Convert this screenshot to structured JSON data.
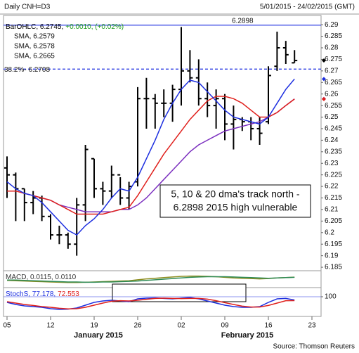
{
  "header": {
    "left": "Daily CNH=D3",
    "right": "5/01/2015 - 24/02/2015 (GMT)"
  },
  "source": "Source: Thomson Reuters",
  "months": [
    "January 2015",
    "February 2015"
  ],
  "chart_data": [
    {
      "type": "ohlc",
      "categories": [
        "05",
        null,
        null,
        null,
        null,
        "12",
        null,
        null,
        null,
        null,
        "19",
        null,
        null,
        null,
        null,
        "26",
        null,
        null,
        null,
        null,
        "02",
        null,
        null,
        null,
        null,
        "09",
        null,
        null,
        null,
        null,
        "16",
        null,
        null,
        null,
        null,
        "23"
      ],
      "open": [
        6.228,
        6.225,
        6.219,
        6.213,
        6.215,
        6.207,
        6.199,
        6.199,
        6.195,
        6.212,
        6.232,
        6.219,
        6.218,
        6.225,
        6.215,
        6.222,
        6.258,
        6.258,
        6.256,
        6.256,
        6.262,
        6.27,
        6.267,
        6.258,
        6.255,
        6.258,
        6.247,
        6.249,
        6.248,
        6.245,
        6.248,
        6.272,
        6.28,
        6.2735,
        null,
        null
      ],
      "high": [
        6.233,
        6.226,
        6.219,
        6.218,
        6.216,
        6.208,
        6.203,
        6.2,
        6.215,
        6.238,
        6.232,
        6.222,
        6.229,
        6.224,
        6.222,
        6.263,
        6.267,
        6.26,
        6.262,
        6.264,
        6.289,
        6.279,
        6.275,
        6.265,
        6.262,
        6.26,
        6.255,
        6.25,
        6.25,
        6.25,
        6.272,
        6.287,
        6.283,
        6.279,
        null,
        null
      ],
      "low": [
        6.215,
        6.205,
        6.205,
        6.208,
        6.205,
        6.197,
        6.195,
        6.193,
        6.19,
        6.205,
        6.215,
        6.212,
        6.215,
        6.212,
        6.21,
        6.22,
        6.245,
        6.245,
        6.25,
        6.248,
        6.255,
        6.265,
        6.255,
        6.25,
        6.245,
        6.24,
        6.236,
        6.244,
        6.24,
        6.238,
        6.247,
        6.27,
        6.273,
        6.2735,
        null,
        null
      ],
      "close": [
        6.225,
        6.219,
        6.213,
        6.215,
        6.207,
        6.199,
        6.199,
        6.195,
        6.212,
        6.236,
        6.219,
        6.218,
        6.225,
        6.215,
        6.22,
        6.258,
        6.258,
        6.256,
        6.256,
        6.262,
        6.27,
        6.267,
        6.258,
        6.255,
        6.258,
        6.247,
        6.249,
        6.248,
        6.245,
        6.243,
        6.268,
        6.28,
        6.277,
        6.2745,
        null,
        null
      ],
      "bar_color": "#000000",
      "legend": [
        [
          {
            "text": "BarOHLC, 6.2745,",
            "color": "#000000"
          },
          {
            "text": "+0.0010, (+0.02%)",
            "color": "#1a9a1a"
          }
        ]
      ],
      "series": [
        {
          "name": "SMA, 6.2579",
          "color": "#7b2fbf",
          "values": [
            null,
            null,
            null,
            6.216,
            6.215,
            6.214,
            6.212,
            6.211,
            6.21,
            6.209,
            6.209,
            6.209,
            6.209,
            6.21,
            6.21,
            6.212,
            6.215,
            6.219,
            6.223,
            6.227,
            6.231,
            6.235,
            6.238,
            6.24,
            6.242,
            6.244,
            6.245,
            6.246,
            6.247,
            6.248,
            6.25,
            6.252,
            6.255,
            6.2579,
            null,
            null
          ]
        },
        {
          "name": "SMA, 6.2578",
          "color": "#e0201c",
          "values": [
            6.218,
            6.218,
            6.217,
            6.216,
            6.215,
            6.214,
            6.212,
            6.21,
            6.208,
            6.208,
            6.208,
            6.208,
            6.209,
            6.21,
            6.211,
            6.216,
            6.222,
            6.228,
            6.234,
            6.239,
            6.244,
            6.249,
            6.253,
            6.257,
            6.259,
            6.259,
            6.258,
            6.256,
            6.253,
            6.25,
            6.25,
            6.252,
            6.255,
            6.2578,
            null,
            null
          ]
        },
        {
          "name": "SMA, 6.2665",
          "color": "#1d2fe0",
          "values": [
            6.222,
            6.219,
            6.217,
            6.216,
            6.213,
            6.209,
            6.205,
            6.201,
            6.199,
            6.203,
            6.206,
            6.21,
            6.215,
            6.219,
            6.218,
            6.224,
            6.232,
            6.24,
            6.249,
            6.256,
            6.262,
            6.266,
            6.265,
            6.261,
            6.257,
            6.253,
            6.25,
            6.249,
            6.248,
            6.247,
            6.25,
            6.256,
            6.262,
            6.2665,
            null,
            null
          ]
        }
      ],
      "hlines": [
        {
          "value": 6.2898,
          "label": "6.2898",
          "color": "#1d2fe0",
          "dashed": false
        },
        {
          "value": 6.2708,
          "label": "38.2%- 6.2708",
          "color": "#1d2fe0",
          "dashed": true
        }
      ],
      "annotations": [
        [
          "5, 10 & 20 dma's track north -",
          "6.2898 2015 high vulnerable"
        ]
      ],
      "ylim": [
        6.1835,
        6.294
      ],
      "yticks": [
        6.29,
        6.285,
        6.28,
        6.275,
        6.27,
        6.265,
        6.26,
        6.255,
        6.25,
        6.245,
        6.24,
        6.235,
        6.23,
        6.225,
        6.22,
        6.215,
        6.21,
        6.205,
        6.2,
        6.195,
        6.19,
        6.185
      ]
    },
    {
      "type": "line",
      "legend": [
        [
          {
            "text": "MACD, 0.0115, 0.0110",
            "color": "#333333"
          }
        ]
      ],
      "series": [
        {
          "color": "#8c8c1e",
          "values": [
            0.001,
            0.0,
            -0.001,
            -0.002,
            -0.003,
            -0.004,
            -0.005,
            -0.006,
            -0.006,
            -0.005,
            -0.004,
            -0.003,
            -0.002,
            -0.001,
            0.0,
            0.003,
            0.006,
            0.008,
            0.01,
            0.012,
            0.014,
            0.015,
            0.015,
            0.014,
            0.013,
            0.011,
            0.009,
            0.008,
            0.007,
            0.006,
            0.007,
            0.009,
            0.01,
            0.0115,
            null,
            null
          ]
        },
        {
          "color": "#2e8b57",
          "values": [
            0.002,
            0.002,
            0.001,
            0.0,
            -0.001,
            -0.002,
            -0.003,
            -0.004,
            -0.004,
            -0.005,
            -0.005,
            -0.004,
            -0.004,
            -0.003,
            -0.002,
            -0.001,
            0.001,
            0.003,
            0.005,
            0.007,
            0.009,
            0.011,
            0.012,
            0.013,
            0.013,
            0.013,
            0.012,
            0.011,
            0.01,
            0.009,
            0.008,
            0.009,
            0.01,
            0.011,
            null,
            null
          ]
        }
      ],
      "ylim": [
        -0.02,
        0.03
      ]
    },
    {
      "type": "line",
      "legend": [
        [
          {
            "text": "StochS, 77.178,",
            "color": "#1d2fe0"
          },
          {
            "text": "72.553",
            "color": "#e0201c"
          }
        ]
      ],
      "series": [
        {
          "color": "#1d2fe0",
          "values": [
            60,
            45,
            35,
            30,
            25,
            15,
            10,
            12,
            20,
            40,
            60,
            70,
            75,
            70,
            65,
            85,
            90,
            92,
            88,
            85,
            90,
            95,
            85,
            70,
            55,
            40,
            30,
            25,
            25,
            30,
            60,
            85,
            88,
            77.178,
            null,
            null
          ]
        },
        {
          "color": "#e0201c",
          "values": [
            65,
            55,
            45,
            38,
            30,
            25,
            18,
            14,
            15,
            25,
            40,
            55,
            68,
            72,
            70,
            75,
            82,
            88,
            90,
            88,
            87,
            88,
            88,
            83,
            72,
            58,
            45,
            33,
            27,
            27,
            38,
            55,
            72,
            72.553,
            null,
            null
          ]
        }
      ],
      "ylim": [
        -40,
        160
      ],
      "yticks": [
        100
      ]
    }
  ]
}
